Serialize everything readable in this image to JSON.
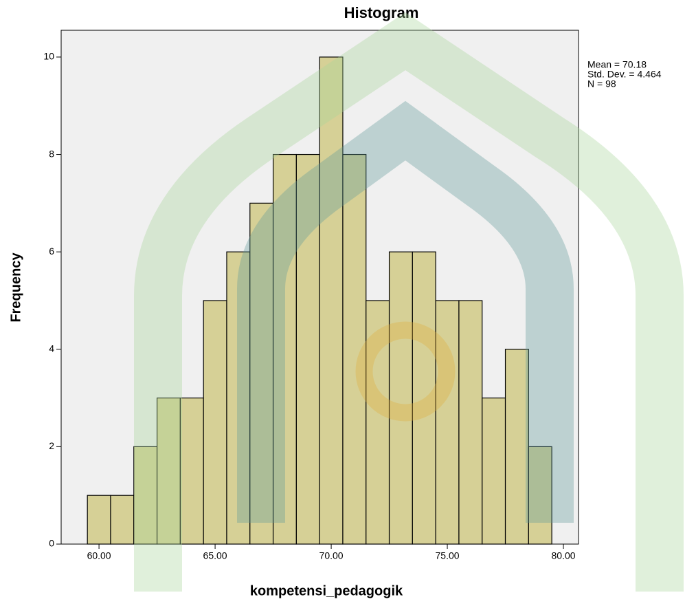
{
  "chart_data": {
    "type": "histogram",
    "title": "Histogram",
    "xlabel": "kompetensi_pedagogik",
    "ylabel": "Frequency",
    "bins": [
      59.5,
      60.5,
      61.5,
      62.5,
      63.5,
      64.5,
      65.5,
      66.5,
      67.5,
      68.5,
      69.5,
      70.5,
      71.5,
      72.5,
      73.5,
      74.5,
      75.5,
      76.5,
      77.5,
      78.5,
      79.5
    ],
    "values": [
      1,
      1,
      2,
      3,
      3,
      5,
      6,
      7,
      8,
      8,
      10,
      8,
      5,
      6,
      6,
      5,
      5,
      3,
      4,
      2
    ],
    "color": "#d6d096",
    "xlim": [
      58.37,
      80.65
    ],
    "xticks": [
      {
        "value": 60,
        "label": "60.00"
      },
      {
        "value": 65,
        "label": "65.00"
      },
      {
        "value": 70,
        "label": "70.00"
      },
      {
        "value": 75,
        "label": "75.00"
      },
      {
        "value": 80,
        "label": "80.00"
      }
    ],
    "ylim": [
      0,
      10.55
    ],
    "yticks": [
      0,
      2,
      4,
      6,
      8,
      10
    ],
    "annotations": [
      "Mean = 70.18",
      "Std. Dev. = 4.464",
      "N = 98"
    ]
  }
}
